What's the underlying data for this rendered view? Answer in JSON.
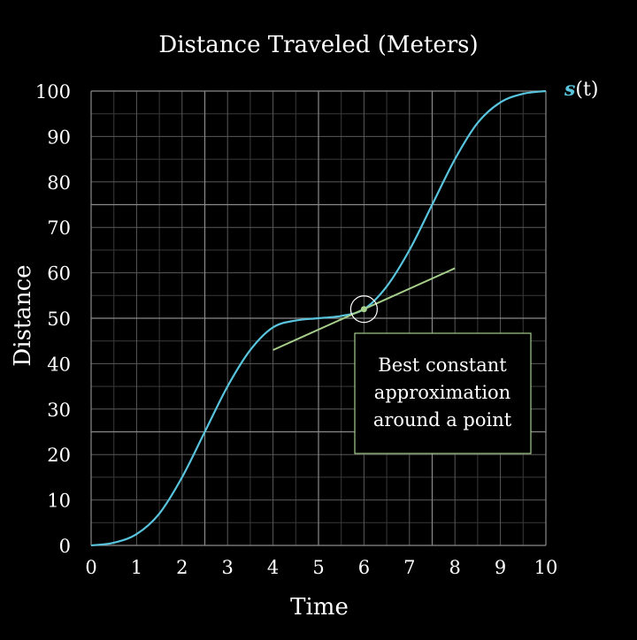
{
  "chart_data": {
    "type": "line",
    "title": "Distance Traveled (Meters)",
    "xlabel": "Time",
    "ylabel": "Distance",
    "xlim": [
      0,
      10
    ],
    "ylim": [
      0,
      100
    ],
    "x_ticks": [
      0,
      1,
      2,
      3,
      4,
      5,
      6,
      7,
      8,
      9,
      10
    ],
    "y_ticks": [
      0,
      10,
      20,
      30,
      40,
      50,
      60,
      70,
      80,
      90,
      100
    ],
    "grid": true,
    "series": [
      {
        "name_italic": "s",
        "name_rest": "(t)",
        "color": "#58c4dd",
        "x": [
          0,
          0.5,
          1,
          1.5,
          2,
          2.5,
          3,
          3.5,
          4,
          4.5,
          5,
          5.5,
          6,
          6.5,
          7,
          7.5,
          8,
          8.5,
          9,
          9.5,
          10
        ],
        "y": [
          0,
          0.6,
          2.5,
          7,
          15,
          25,
          35,
          43,
          48,
          49.5,
          50,
          50.5,
          52,
          57,
          65,
          75,
          85,
          93,
          97.5,
          99.4,
          100
        ]
      },
      {
        "kind": "tangent-line",
        "color": "#a6cf8c",
        "x": [
          4,
          8
        ],
        "y": [
          43,
          61
        ]
      }
    ],
    "highlight_point": {
      "x": 6,
      "y": 52,
      "color": "#a6cf8c"
    },
    "annotation": {
      "lines": [
        "Best constant",
        "approximation",
        "around a point"
      ],
      "border_color": "#a6cf8c"
    },
    "colors": {
      "background": "#000000",
      "grid_major": "#8a8a8a",
      "grid_minor": "#3a3a3a",
      "text": "#ffffff"
    }
  }
}
